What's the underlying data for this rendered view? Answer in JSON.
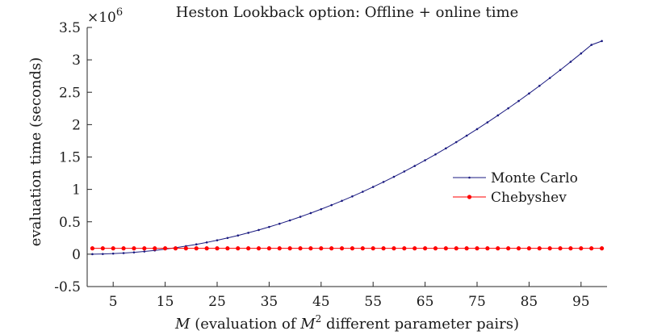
{
  "chart_data": {
    "type": "line",
    "title": "Heston Lookback option: Offline + online time",
    "xlabel": {
      "var": "M",
      "pre": "(evaluation of",
      "var2": "M",
      "sup": "2",
      "post": "different parameter pairs)"
    },
    "ylabel": "evaluation time (seconds)",
    "y_multiplier": {
      "base": "×10",
      "exp": "6"
    },
    "xlim": [
      0,
      100
    ],
    "ylim": [
      -0.5,
      3.5
    ],
    "x_ticks": [
      5,
      15,
      25,
      35,
      45,
      55,
      65,
      75,
      85,
      95
    ],
    "y_ticks": [
      -0.5,
      0,
      0.5,
      1,
      1.5,
      2,
      2.5,
      3,
      3.5
    ],
    "y_tick_labels": [
      "-0.5",
      "0",
      "0.5",
      "1",
      "1.5",
      "2",
      "2.5",
      "3",
      "3.5"
    ],
    "x": [
      1,
      3,
      5,
      7,
      9,
      11,
      13,
      15,
      17,
      19,
      21,
      23,
      25,
      27,
      29,
      31,
      33,
      35,
      37,
      39,
      41,
      43,
      45,
      47,
      49,
      51,
      53,
      55,
      57,
      59,
      61,
      63,
      65,
      67,
      69,
      71,
      73,
      75,
      77,
      79,
      81,
      83,
      85,
      87,
      89,
      91,
      93,
      95,
      97,
      99
    ],
    "series": [
      {
        "name": "Monte Carlo",
        "color": "#1a1a80",
        "marker": "dot-small",
        "values": [
          0.0003,
          0.0031,
          0.0086,
          0.0169,
          0.0278,
          0.0416,
          0.058,
          0.0773,
          0.0992,
          0.1239,
          0.1514,
          0.1815,
          0.2145,
          0.2501,
          0.2885,
          0.3297,
          0.3736,
          0.4202,
          0.4695,
          0.5217,
          0.5766,
          0.6342,
          0.6945,
          0.7577,
          0.8235,
          0.8922,
          0.9636,
          1.0377,
          1.1146,
          1.1942,
          1.2766,
          1.3618,
          1.4497,
          1.5404,
          1.6338,
          1.7299,
          1.8289,
          1.9306,
          2.035,
          2.1422,
          2.2521,
          2.3648,
          2.4803,
          2.5985,
          2.7195,
          2.8432,
          2.9697,
          3.0989,
          3.2309,
          3.29
        ]
      },
      {
        "name": "Chebyshev",
        "color": "#ff0000",
        "marker": "dot-large",
        "values": [
          0.09,
          0.09,
          0.09,
          0.09,
          0.09,
          0.09,
          0.09,
          0.09,
          0.09,
          0.09,
          0.09,
          0.09,
          0.09,
          0.09,
          0.09,
          0.09,
          0.09,
          0.09,
          0.09,
          0.09,
          0.09,
          0.09,
          0.09,
          0.09,
          0.09,
          0.09,
          0.09,
          0.09,
          0.09,
          0.09,
          0.09,
          0.09,
          0.09,
          0.09,
          0.09,
          0.09,
          0.09,
          0.09,
          0.09,
          0.09,
          0.09,
          0.09,
          0.09,
          0.09,
          0.09,
          0.09,
          0.09,
          0.09,
          0.09,
          0.09
        ]
      }
    ],
    "legend_position": "right",
    "grid": false,
    "axis_color": "#262626"
  }
}
